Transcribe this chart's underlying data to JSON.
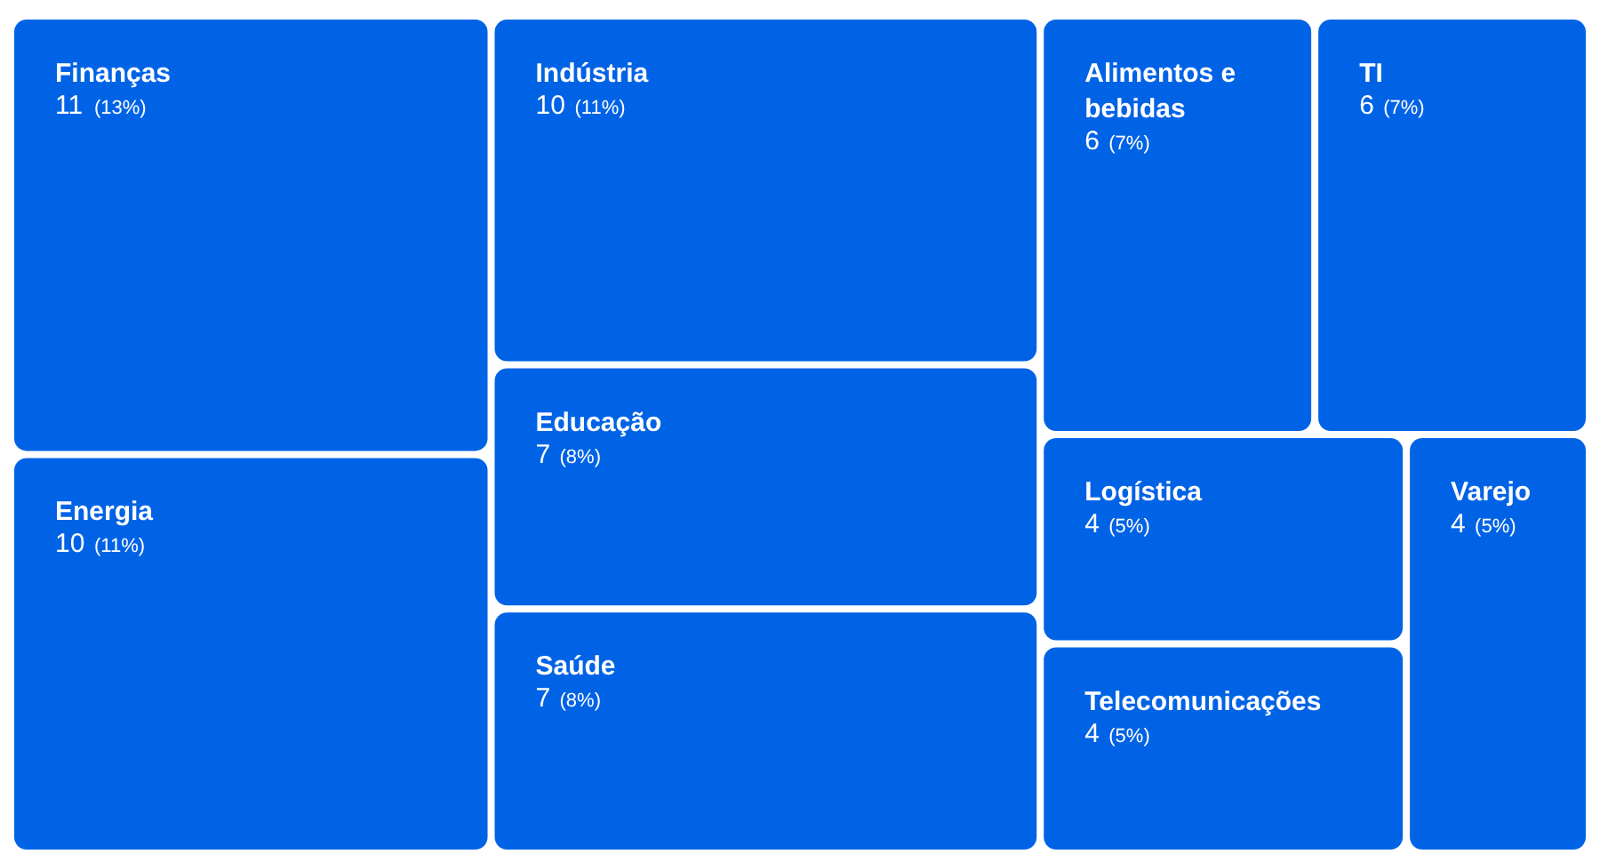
{
  "chart_data": {
    "type": "other",
    "categories": [
      "Finanças",
      "Energia",
      "Indústria",
      "Educação",
      "Saúde",
      "Alimentos e bebidas",
      "TI",
      "Logística",
      "Telecomunicações",
      "Varejo"
    ],
    "series": [
      {
        "values": [
          11,
          10,
          10,
          7,
          7,
          6,
          6,
          4,
          4,
          4
        ],
        "color": "#0063e5"
      },
      {
        "values": [
          13,
          11,
          11,
          8,
          8,
          7,
          7,
          5,
          5,
          5
        ],
        "value_labels": [
          "(13%)",
          "(11%)",
          "(11%)",
          "(8%)",
          "(8%)",
          "(7%)",
          "(7%)",
          "(5%)",
          "(5%)",
          "(5%)"
        ]
      }
    ],
    "data_labels": true
  }
}
